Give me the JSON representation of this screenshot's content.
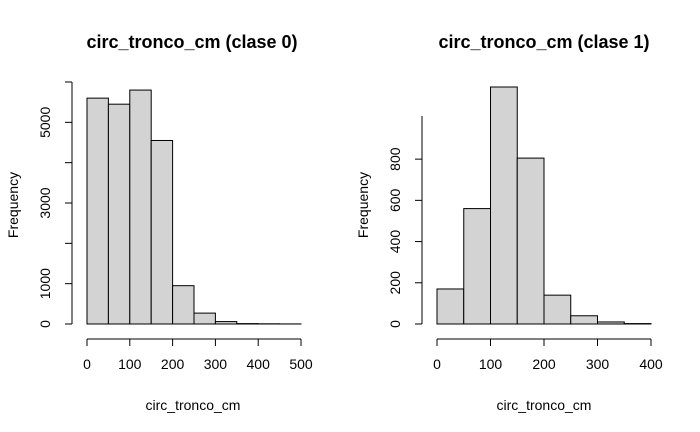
{
  "chart_data": [
    {
      "type": "bar",
      "title": "circ_tronco_cm (clase 0)",
      "xlabel": "circ_tronco_cm",
      "ylabel": "Frequency",
      "bins": [
        [
          0,
          50
        ],
        [
          50,
          100
        ],
        [
          100,
          150
        ],
        [
          150,
          200
        ],
        [
          200,
          250
        ],
        [
          250,
          300
        ],
        [
          300,
          350
        ],
        [
          350,
          400
        ],
        [
          400,
          450
        ],
        [
          450,
          500
        ]
      ],
      "values": [
        5600,
        5450,
        5800,
        4550,
        950,
        270,
        60,
        10,
        5,
        2
      ],
      "xticks": [
        0,
        100,
        200,
        300,
        400,
        500
      ],
      "yticks": [
        0,
        1000,
        3000,
        5000
      ],
      "xlim": [
        0,
        500
      ],
      "ylim": [
        0,
        6000
      ],
      "bar_color": "#d3d3d3"
    },
    {
      "type": "bar",
      "title": "circ_tronco_cm (clase 1)",
      "xlabel": "circ_tronco_cm",
      "ylabel": "Frequency",
      "bins": [
        [
          0,
          50
        ],
        [
          50,
          100
        ],
        [
          100,
          150
        ],
        [
          150,
          200
        ],
        [
          200,
          250
        ],
        [
          250,
          300
        ],
        [
          300,
          350
        ],
        [
          350,
          400
        ]
      ],
      "values": [
        170,
        560,
        1150,
        805,
        140,
        40,
        10,
        2
      ],
      "xticks": [
        0,
        100,
        200,
        300,
        400
      ],
      "yticks": [
        0,
        200,
        400,
        600,
        800
      ],
      "xlim": [
        0,
        400
      ],
      "ylim": [
        0,
        1150
      ],
      "bar_color": "#d3d3d3"
    }
  ]
}
